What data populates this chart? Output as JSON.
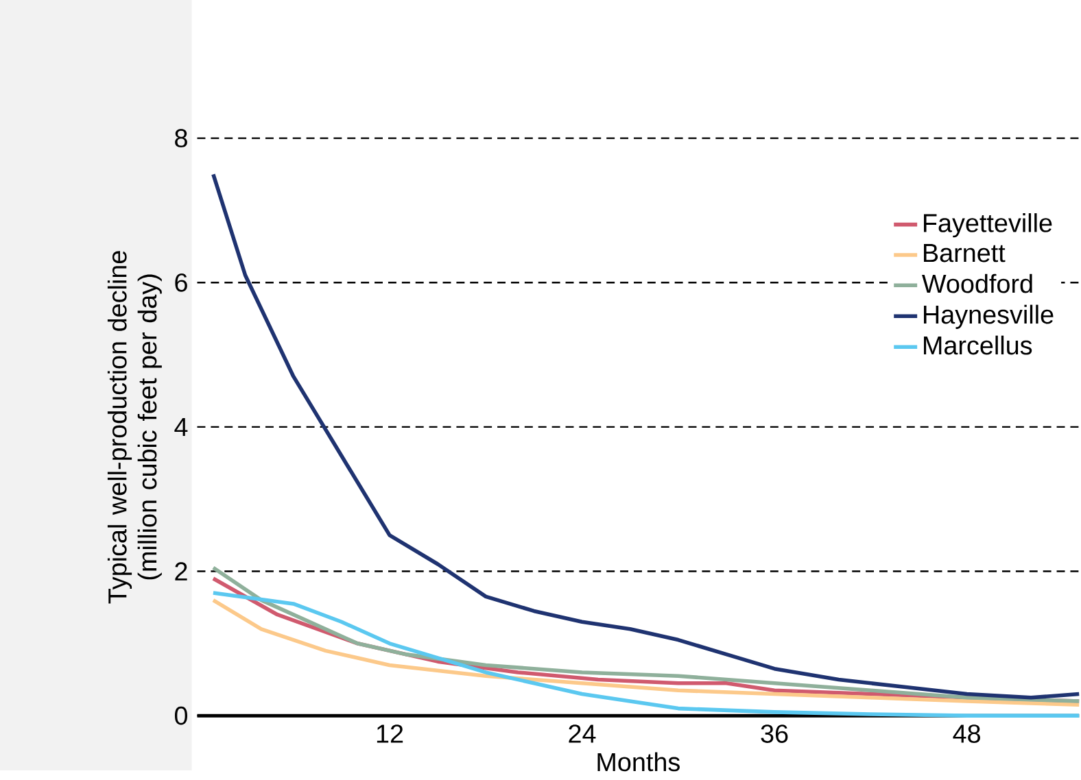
{
  "chart_data": {
    "type": "line",
    "xlabel": "Months",
    "ylabel": "Typical well-production decline (million cubic feet per day)",
    "xlim": [
      0,
      55
    ],
    "ylim": [
      0,
      8
    ],
    "xticks": [
      12,
      24,
      36,
      48
    ],
    "yticks": [
      0,
      2,
      4,
      6,
      8
    ],
    "grid": "y",
    "legend": "top right",
    "line_style": "solid",
    "marker": "none",
    "series": [
      {
        "name": "Fayetteville",
        "color": "#d05a6e",
        "x": [
          1,
          5,
          10,
          15,
          20,
          25,
          30,
          33,
          36,
          42,
          48,
          55
        ],
        "values": [
          1.9,
          1.4,
          1.0,
          0.75,
          0.6,
          0.5,
          0.45,
          0.45,
          0.35,
          0.3,
          0.25,
          0.2
        ]
      },
      {
        "name": "Barnett",
        "color": "#fcc98a",
        "x": [
          1,
          4,
          8,
          12,
          18,
          24,
          30,
          36,
          42,
          48,
          55
        ],
        "values": [
          1.6,
          1.2,
          0.9,
          0.7,
          0.55,
          0.45,
          0.35,
          0.3,
          0.25,
          0.2,
          0.15
        ]
      },
      {
        "name": "Woodford",
        "color": "#8fb09b",
        "x": [
          1,
          4,
          7,
          10,
          13,
          18,
          24,
          30,
          36,
          42,
          48,
          55
        ],
        "values": [
          2.05,
          1.6,
          1.3,
          1.0,
          0.85,
          0.7,
          0.6,
          0.55,
          0.45,
          0.35,
          0.25,
          0.2
        ]
      },
      {
        "name": "Haynesville",
        "color": "#1f3371",
        "x": [
          1,
          3,
          6,
          9,
          12,
          15,
          18,
          21,
          24,
          27,
          30,
          33,
          36,
          40,
          44,
          48,
          52,
          55
        ],
        "values": [
          7.5,
          6.1,
          4.7,
          3.6,
          2.5,
          2.1,
          1.65,
          1.45,
          1.3,
          1.2,
          1.05,
          0.85,
          0.65,
          0.5,
          0.4,
          0.3,
          0.25,
          0.3
        ]
      },
      {
        "name": "Marcellus",
        "color": "#5bc8f0",
        "x": [
          1,
          6,
          9,
          12,
          15,
          18,
          21,
          24,
          27,
          30,
          36,
          42,
          48,
          55
        ],
        "values": [
          1.7,
          1.55,
          1.3,
          1.0,
          0.8,
          0.6,
          0.45,
          0.3,
          0.2,
          0.1,
          0.05,
          0.02,
          0,
          0
        ]
      }
    ]
  }
}
